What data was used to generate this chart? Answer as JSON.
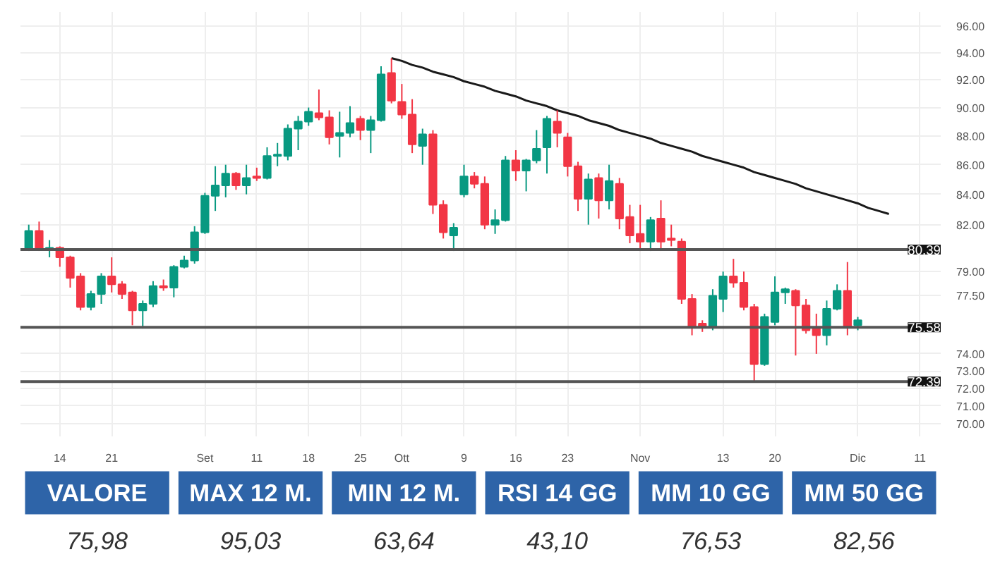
{
  "chart_data": [
    {
      "type": "candlestick",
      "categories": [
        null,
        null,
        null,
        "14",
        null,
        null,
        null,
        null,
        "21",
        null,
        null,
        null,
        null,
        null,
        null,
        null,
        null,
        "Set",
        null,
        null,
        null,
        null,
        "11",
        null,
        null,
        null,
        null,
        "18",
        null,
        null,
        null,
        null,
        "25",
        null,
        null,
        null,
        "Ott",
        null,
        null,
        null,
        null,
        null,
        "9",
        null,
        null,
        null,
        null,
        "16",
        null,
        null,
        null,
        null,
        "23",
        null,
        null,
        null,
        null,
        null,
        null,
        "Nov",
        null,
        null,
        null,
        null,
        null,
        null,
        null,
        "13",
        null,
        null,
        null,
        null,
        "20",
        null,
        null,
        null,
        null,
        null,
        null,
        null,
        "Dic",
        null,
        null,
        null,
        null,
        null,
        "11",
        null,
        null
      ],
      "ohlc": [
        [
          80.4,
          82.0,
          80.3,
          81.6
        ],
        [
          81.6,
          82.2,
          80.3,
          80.4
        ],
        [
          80.4,
          81.0,
          79.9,
          80.5
        ],
        [
          80.5,
          80.6,
          79.3,
          79.9
        ],
        [
          79.9,
          80.0,
          78.0,
          78.6
        ],
        [
          78.7,
          78.9,
          76.6,
          76.8
        ],
        [
          76.8,
          77.8,
          76.6,
          77.6
        ],
        [
          77.6,
          78.9,
          77.0,
          78.7
        ],
        [
          78.7,
          79.9,
          77.7,
          78.2
        ],
        [
          78.2,
          78.4,
          77.3,
          77.6
        ],
        [
          77.7,
          77.8,
          75.7,
          76.6
        ],
        [
          76.6,
          77.2,
          75.5,
          77.0
        ],
        [
          77.0,
          78.4,
          76.8,
          78.1
        ],
        [
          78.1,
          78.5,
          77.8,
          78.0
        ],
        [
          78.0,
          79.4,
          77.4,
          79.3
        ],
        [
          79.3,
          80.0,
          79.2,
          79.7
        ],
        [
          79.7,
          81.9,
          79.5,
          81.5
        ],
        [
          81.5,
          84.1,
          81.4,
          83.9
        ],
        [
          83.9,
          85.9,
          82.9,
          84.6
        ],
        [
          84.6,
          86.0,
          83.8,
          85.4
        ],
        [
          85.4,
          85.5,
          84.3,
          84.6
        ],
        [
          84.6,
          86.0,
          84.0,
          85.1
        ],
        [
          85.2,
          85.8,
          84.9,
          85.1
        ],
        [
          85.1,
          87.2,
          85.0,
          86.6
        ],
        [
          86.6,
          87.5,
          85.9,
          86.7
        ],
        [
          86.6,
          88.8,
          86.3,
          88.5
        ],
        [
          88.5,
          89.4,
          87.0,
          89.0
        ],
        [
          89.0,
          90.0,
          88.7,
          89.7
        ],
        [
          89.6,
          91.3,
          89.1,
          89.3
        ],
        [
          89.3,
          89.8,
          87.4,
          87.9
        ],
        [
          88.0,
          89.7,
          86.5,
          88.2
        ],
        [
          88.2,
          90.1,
          87.9,
          88.9
        ],
        [
          89.2,
          89.4,
          87.7,
          88.4
        ],
        [
          88.4,
          89.4,
          86.8,
          89.1
        ],
        [
          89.1,
          93.0,
          89.0,
          92.4
        ],
        [
          92.5,
          93.6,
          90.3,
          90.5
        ],
        [
          90.4,
          91.7,
          89.2,
          89.5
        ],
        [
          89.5,
          90.6,
          86.8,
          87.4
        ],
        [
          87.3,
          88.5,
          86.0,
          88.1
        ],
        [
          88.1,
          88.4,
          82.7,
          83.3
        ],
        [
          83.3,
          83.6,
          81.1,
          81.5
        ],
        [
          81.3,
          82.1,
          80.3,
          81.8
        ],
        [
          84.0,
          86.0,
          83.8,
          85.2
        ],
        [
          85.2,
          85.5,
          84.4,
          84.7
        ],
        [
          84.7,
          85.2,
          81.7,
          82.0
        ],
        [
          82.0,
          83.0,
          81.4,
          82.3
        ],
        [
          82.3,
          86.6,
          82.2,
          86.3
        ],
        [
          86.3,
          87.0,
          84.9,
          85.6
        ],
        [
          85.6,
          86.4,
          84.2,
          86.3
        ],
        [
          86.3,
          88.4,
          86.1,
          87.1
        ],
        [
          87.2,
          89.4,
          85.4,
          89.2
        ],
        [
          89.0,
          89.8,
          87.2,
          88.2
        ],
        [
          87.9,
          88.2,
          85.2,
          85.9
        ],
        [
          85.9,
          86.2,
          82.9,
          83.7
        ],
        [
          83.7,
          85.4,
          82.0,
          85.0
        ],
        [
          85.1,
          85.4,
          82.4,
          83.6
        ],
        [
          83.6,
          86.0,
          83.0,
          84.9
        ],
        [
          84.7,
          85.1,
          81.7,
          82.4
        ],
        [
          82.5,
          83.3,
          80.8,
          81.3
        ],
        [
          81.4,
          83.3,
          80.3,
          80.9
        ],
        [
          80.9,
          82.5,
          80.3,
          82.3
        ],
        [
          82.4,
          83.6,
          80.3,
          80.9
        ],
        [
          81.1,
          82.0,
          80.6,
          81.0
        ],
        [
          80.9,
          81.1,
          77.0,
          77.3
        ],
        [
          77.3,
          77.6,
          75.1,
          75.6
        ],
        [
          75.8,
          76.0,
          75.3,
          75.6
        ],
        [
          75.6,
          77.9,
          75.4,
          77.5
        ],
        [
          77.3,
          79.0,
          76.5,
          78.7
        ],
        [
          78.7,
          79.8,
          78.0,
          78.3
        ],
        [
          78.3,
          79.0,
          76.6,
          76.8
        ],
        [
          76.8,
          77.0,
          72.4,
          73.4
        ],
        [
          73.4,
          76.4,
          73.3,
          76.2
        ],
        [
          75.9,
          78.7,
          75.7,
          77.7
        ],
        [
          77.7,
          78.0,
          77.0,
          77.9
        ],
        [
          77.8,
          77.9,
          73.9,
          76.9
        ],
        [
          76.9,
          77.3,
          75.2,
          75.4
        ],
        [
          75.5,
          76.4,
          74.0,
          75.1
        ],
        [
          75.1,
          77.2,
          74.5,
          76.7
        ],
        [
          76.7,
          78.2,
          76.6,
          77.8
        ],
        [
          77.8,
          79.6,
          75.1,
          75.6
        ],
        [
          75.7,
          76.2,
          75.4,
          76.0
        ],
        null,
        null,
        null,
        null,
        null,
        null,
        null,
        null
      ],
      "colors": [
        "#089981",
        "#f23645",
        "#089981",
        "#f23645",
        "#f23645",
        "#f23645",
        "#089981",
        "#089981",
        "#f23645",
        "#f23645",
        "#f23645",
        "#089981",
        "#089981",
        "#f23645",
        "#089981",
        "#089981",
        "#089981",
        "#089981",
        "#089981",
        "#089981",
        "#f23645",
        "#089981",
        "#f23645",
        "#089981",
        "#089981",
        "#089981",
        "#089981",
        "#089981",
        "#f23645",
        "#f23645",
        "#089981",
        "#089981",
        "#f23645",
        "#089981",
        "#089981",
        "#f23645",
        "#f23645",
        "#f23645",
        "#089981",
        "#f23645",
        "#f23645",
        "#089981",
        "#089981",
        "#f23645",
        "#f23645",
        "#089981",
        "#089981",
        "#f23645",
        "#089981",
        "#089981",
        "#089981",
        "#f23645",
        "#f23645",
        "#f23645",
        "#089981",
        "#f23645",
        "#089981",
        "#f23645",
        "#f23645",
        "#f23645",
        "#089981",
        "#f23645",
        "#f23645",
        "#f23645",
        "#f23645",
        "#f23645",
        "#089981",
        "#089981",
        "#f23645",
        "#f23645",
        "#f23645",
        "#089981",
        "#089981",
        "#089981",
        "#f23645",
        "#f23645",
        "#f23645",
        "#089981",
        "#089981",
        "#f23645",
        "#089981",
        null,
        null,
        null,
        null,
        null,
        null,
        null,
        null
      ],
      "series": [
        {
          "type": "line",
          "color": "#1a1a1a",
          "values": [
            null,
            null,
            null,
            null,
            null,
            null,
            null,
            null,
            null,
            null,
            null,
            null,
            null,
            null,
            null,
            null,
            null,
            null,
            null,
            null,
            null,
            null,
            null,
            null,
            null,
            null,
            null,
            null,
            null,
            null,
            null,
            null,
            null,
            null,
            null,
            93.6,
            93.4,
            93.1,
            92.9,
            92.6,
            92.4,
            92.2,
            91.9,
            91.7,
            91.5,
            91.2,
            91.0,
            90.8,
            90.5,
            90.3,
            90.1,
            89.8,
            89.6,
            89.4,
            89.1,
            88.9,
            88.7,
            88.4,
            88.2,
            88.0,
            87.8,
            87.5,
            87.3,
            87.1,
            86.9,
            86.6,
            86.4,
            86.2,
            86.0,
            85.8,
            85.5,
            85.3,
            85.1,
            84.9,
            84.7,
            84.4,
            84.2,
            84.0,
            83.8,
            83.6,
            83.4,
            83.1,
            82.9,
            82.7,
            null,
            null,
            null,
            null,
            null
          ]
        }
      ],
      "ref_lines": [
        {
          "axis": "y",
          "value": 80.39,
          "label": "80.39",
          "color": "#555555"
        },
        {
          "axis": "y",
          "value": 75.58,
          "label": "75.58",
          "color": "#555555"
        },
        {
          "axis": "y",
          "value": 72.39,
          "label": "72.39",
          "color": "#555555"
        }
      ],
      "log": "y",
      "ylim": [
        69.3,
        97.1
      ],
      "yticks": [
        {
          "value": 70,
          "label": "70.00"
        },
        {
          "value": 71,
          "label": "71.00"
        },
        {
          "value": 72,
          "label": "72.00"
        },
        {
          "value": 73,
          "label": "73.00"
        },
        {
          "value": 74,
          "label": "74.00"
        },
        {
          "value": 77.5,
          "label": "77.50"
        },
        {
          "value": 79,
          "label": "79.00"
        },
        {
          "value": 82,
          "label": "82.00"
        },
        {
          "value": 84,
          "label": "84.00"
        },
        {
          "value": 86,
          "label": "86.00"
        },
        {
          "value": 88,
          "label": "88.00"
        },
        {
          "value": 90,
          "label": "90.00"
        },
        {
          "value": 92,
          "label": "92.00"
        },
        {
          "value": 94,
          "label": "94.00"
        },
        {
          "value": 96,
          "label": "96.00"
        }
      ],
      "grid": true
    },
    {
      "type": "other",
      "categories": [
        "VALORE",
        "MAX 12 M.",
        "MIN 12 M.",
        "RSI 14 GG",
        "MM 10 GG",
        "MM 50 GG"
      ],
      "annotations": [
        "75,98",
        "95,03",
        "63,64",
        "43,10",
        "76,53",
        "82,56"
      ],
      "color": "#2e64a8"
    }
  ]
}
